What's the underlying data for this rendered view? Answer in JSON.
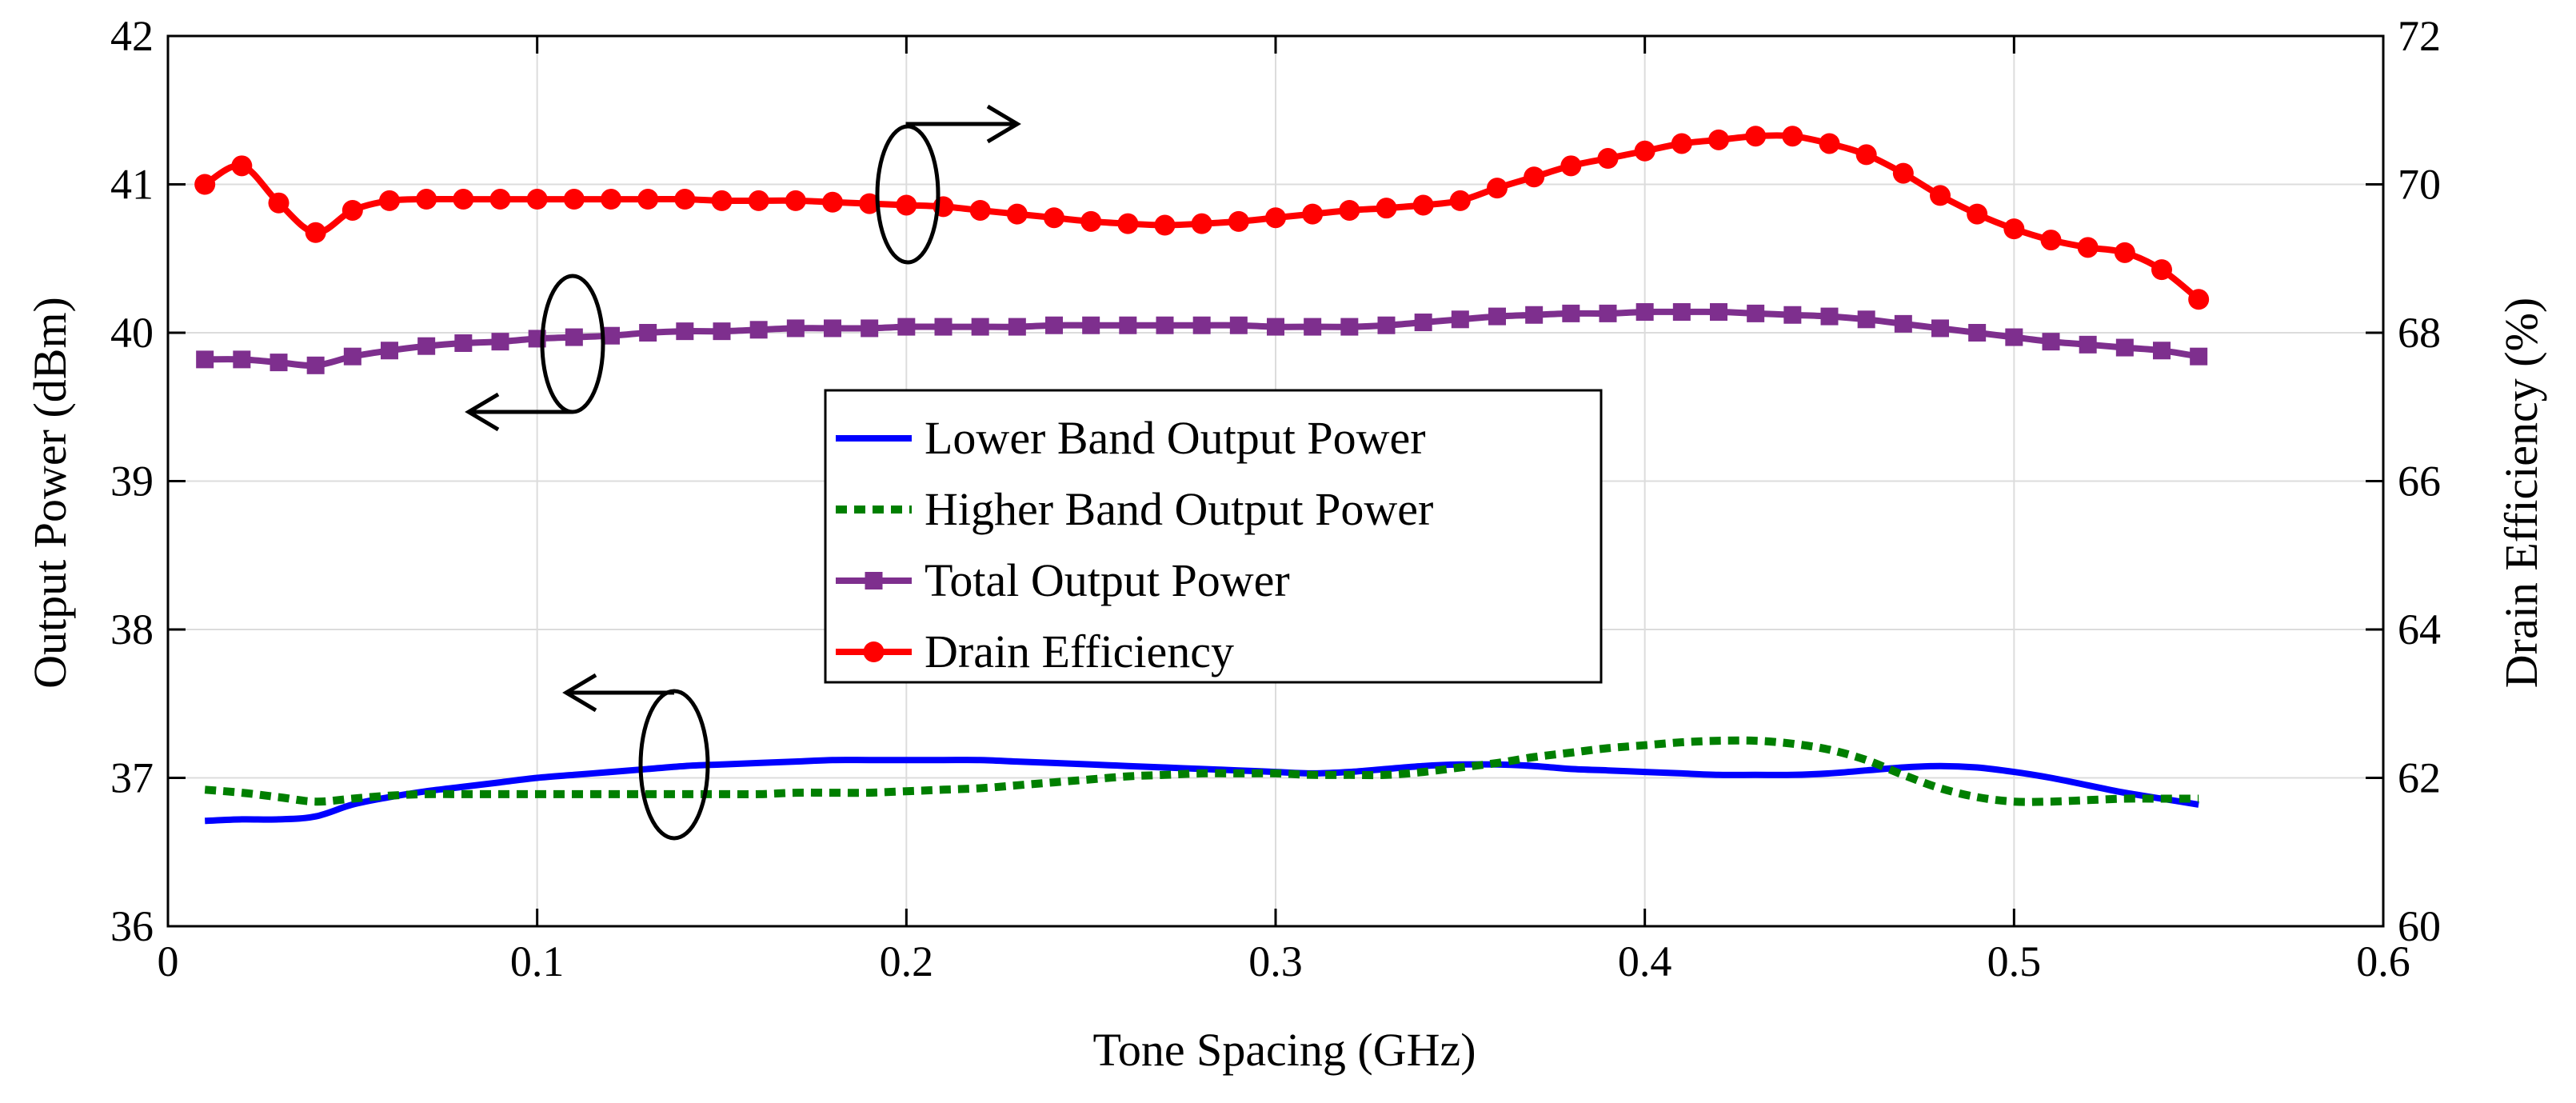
{
  "chart_data": {
    "type": "line",
    "title": "",
    "xlabel": "Tone Spacing (GHz)",
    "ylabel_left": "Output Power (dBm)",
    "ylabel_right": "Drain Efficiency (%)",
    "xlim": [
      0,
      0.6
    ],
    "ylim_left": [
      36,
      42
    ],
    "ylim_right": [
      60,
      72
    ],
    "xticks": [
      "0",
      "0.1",
      "0.2",
      "0.3",
      "0.4",
      "0.5",
      "0.6"
    ],
    "yticks_left": [
      "36",
      "37",
      "38",
      "39",
      "40",
      "41",
      "42"
    ],
    "yticks_right": [
      "60",
      "62",
      "64",
      "66",
      "68",
      "70",
      "72"
    ],
    "grid": true,
    "legend_position": "center",
    "x": [
      0.01,
      0.02,
      0.03,
      0.04,
      0.05,
      0.06,
      0.07,
      0.08,
      0.09,
      0.1,
      0.11,
      0.12,
      0.13,
      0.14,
      0.15,
      0.16,
      0.17,
      0.18,
      0.19,
      0.2,
      0.21,
      0.22,
      0.23,
      0.24,
      0.25,
      0.26,
      0.27,
      0.28,
      0.29,
      0.3,
      0.31,
      0.32,
      0.33,
      0.34,
      0.35,
      0.36,
      0.37,
      0.38,
      0.39,
      0.4,
      0.41,
      0.42,
      0.43,
      0.44,
      0.45,
      0.46,
      0.47,
      0.48,
      0.49,
      0.5,
      0.51,
      0.52,
      0.53,
      0.54,
      0.55
    ],
    "series": [
      {
        "name": "Lower Band Output Power",
        "axis": "left",
        "color": "#0000ff",
        "style": "solid",
        "marker": "none",
        "values": [
          36.71,
          36.72,
          36.72,
          36.74,
          36.82,
          36.87,
          36.91,
          36.94,
          36.97,
          37.0,
          37.02,
          37.04,
          37.06,
          37.08,
          37.09,
          37.1,
          37.11,
          37.12,
          37.12,
          37.12,
          37.12,
          37.12,
          37.11,
          37.1,
          37.09,
          37.08,
          37.07,
          37.06,
          37.05,
          37.04,
          37.03,
          37.04,
          37.06,
          37.08,
          37.09,
          37.09,
          37.08,
          37.06,
          37.05,
          37.04,
          37.03,
          37.02,
          37.02,
          37.02,
          37.03,
          37.05,
          37.07,
          37.08,
          37.07,
          37.04,
          37.0,
          36.95,
          36.9,
          36.86,
          36.82
        ]
      },
      {
        "name": "Higher Band Output Power",
        "axis": "left",
        "color": "#007f00",
        "style": "dotted",
        "marker": "none",
        "values": [
          36.92,
          36.9,
          36.87,
          36.84,
          36.86,
          36.88,
          36.89,
          36.89,
          36.89,
          36.89,
          36.89,
          36.89,
          36.89,
          36.89,
          36.89,
          36.89,
          36.9,
          36.9,
          36.9,
          36.91,
          36.92,
          36.93,
          36.95,
          36.97,
          36.99,
          37.01,
          37.02,
          37.03,
          37.03,
          37.03,
          37.02,
          37.02,
          37.02,
          37.04,
          37.07,
          37.1,
          37.14,
          37.17,
          37.2,
          37.22,
          37.24,
          37.25,
          37.25,
          37.23,
          37.19,
          37.12,
          37.02,
          36.93,
          36.87,
          36.84,
          36.84,
          36.85,
          36.86,
          36.86,
          36.86
        ]
      },
      {
        "name": "Total Output Power",
        "axis": "left",
        "color": "#7e2f8e",
        "style": "solid",
        "marker": "square",
        "values": [
          39.82,
          39.82,
          39.8,
          39.78,
          39.84,
          39.88,
          39.91,
          39.93,
          39.94,
          39.96,
          39.97,
          39.98,
          40.0,
          40.01,
          40.01,
          40.02,
          40.03,
          40.03,
          40.03,
          40.04,
          40.04,
          40.04,
          40.04,
          40.05,
          40.05,
          40.05,
          40.05,
          40.05,
          40.05,
          40.04,
          40.04,
          40.04,
          40.05,
          40.07,
          40.09,
          40.11,
          40.12,
          40.13,
          40.13,
          40.14,
          40.14,
          40.14,
          40.13,
          40.12,
          40.11,
          40.09,
          40.06,
          40.03,
          40.0,
          39.97,
          39.94,
          39.92,
          39.9,
          39.88,
          39.84
        ]
      },
      {
        "name": "Drain Efficiency",
        "axis": "right",
        "color": "#ff0000",
        "style": "solid",
        "marker": "circle",
        "values": [
          70.0,
          70.25,
          69.75,
          69.35,
          69.65,
          69.78,
          69.8,
          69.8,
          69.8,
          69.8,
          69.8,
          69.8,
          69.8,
          69.8,
          69.78,
          69.78,
          69.78,
          69.76,
          69.74,
          69.72,
          69.7,
          69.65,
          69.6,
          69.55,
          69.5,
          69.47,
          69.45,
          69.47,
          69.5,
          69.55,
          69.6,
          69.65,
          69.68,
          69.72,
          69.78,
          69.95,
          70.1,
          70.25,
          70.35,
          70.45,
          70.55,
          70.6,
          70.65,
          70.65,
          70.55,
          70.4,
          70.15,
          69.85,
          69.6,
          69.4,
          69.25,
          69.15,
          69.08,
          68.85,
          68.45
        ]
      }
    ]
  }
}
